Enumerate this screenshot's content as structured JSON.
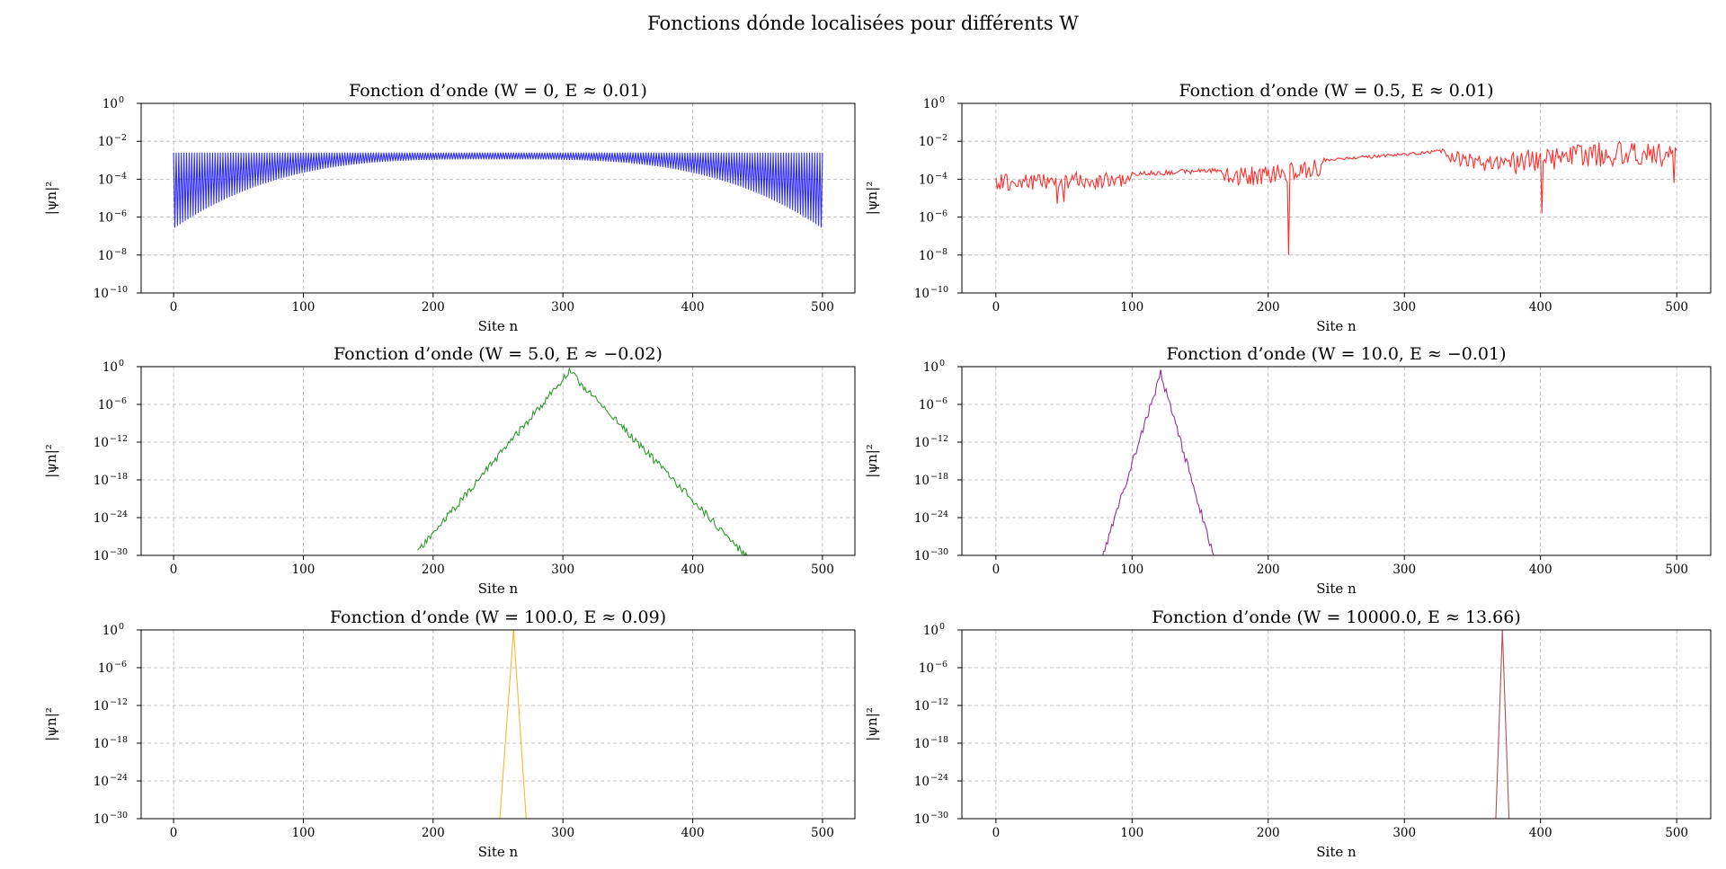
{
  "figure": {
    "suptitle": "Fonctions dónde localisées pour différents W"
  },
  "chart_data": [
    {
      "type": "line",
      "title": "Fonction d’onde (W = 0, E ≈ 0.01)",
      "xlabel": "Site n",
      "ylabel": "|ψn|²",
      "color": "#0000ff",
      "yscale": "log",
      "xlim": [
        -25,
        525
      ],
      "ylim_exp": [
        -10,
        0
      ],
      "xticks": [
        0,
        100,
        200,
        300,
        400,
        500
      ],
      "yticks_exp": [
        0,
        -2,
        -4,
        -6,
        -8,
        -10
      ],
      "grid": true,
      "pattern": "alternating",
      "n_sites": 501,
      "upper_log10": -2.6,
      "lower_log10_edge": -6.6,
      "lower_log10_center": -2.95,
      "center_site": 250
    },
    {
      "type": "line",
      "title": "Fonction d’onde (W = 0.5, E ≈ 0.01)",
      "xlabel": "Site n",
      "ylabel": "|ψn|²",
      "color": "#ff0000",
      "yscale": "log",
      "xlim": [
        -25,
        525
      ],
      "ylim_exp": [
        -10,
        0
      ],
      "xticks": [
        0,
        100,
        200,
        300,
        400,
        500
      ],
      "yticks_exp": [
        0,
        -2,
        -4,
        -6,
        -8,
        -10
      ],
      "grid": true,
      "pattern": "noisy",
      "n_sites": 501,
      "seed": 7,
      "envelope": [
        [
          0,
          -3.7
        ],
        [
          100,
          -3.6
        ],
        [
          150,
          -3.45
        ],
        [
          200,
          -3.3
        ],
        [
          240,
          -2.9
        ],
        [
          300,
          -2.6
        ],
        [
          330,
          -2.4
        ],
        [
          360,
          -2.8
        ],
        [
          400,
          -2.3
        ],
        [
          450,
          -2.0
        ],
        [
          470,
          -1.95
        ],
        [
          500,
          -2.1
        ]
      ],
      "dips": [
        [
          45,
          -5.3
        ],
        [
          50,
          -5.2
        ],
        [
          215,
          -8.0
        ],
        [
          401,
          -5.8
        ],
        [
          498,
          -4.2
        ]
      ]
    },
    {
      "type": "line",
      "title": "Fonction d’onde (W = 5.0, E ≈ −0.02)",
      "xlabel": "Site n",
      "ylabel": "|ψn|²",
      "color": "#008000",
      "yscale": "log",
      "xlim": [
        -25,
        525
      ],
      "ylim_exp": [
        -30,
        0
      ],
      "xticks": [
        0,
        100,
        200,
        300,
        400,
        500
      ],
      "yticks_exp": [
        0,
        -6,
        -12,
        -18,
        -24,
        -30
      ],
      "grid": true,
      "pattern": "peak",
      "seed": 11,
      "x_range": [
        188,
        442
      ],
      "peak_x": 305,
      "peak_log10": -0.2,
      "slope_left": 0.245,
      "slope_right": 0.215,
      "noise": 1.2
    },
    {
      "type": "line",
      "title": "Fonction d’onde (W = 10.0, E ≈ −0.01)",
      "xlabel": "Site n",
      "ylabel": "|ψn|²",
      "color": "#800080",
      "yscale": "log",
      "xlim": [
        -25,
        525
      ],
      "ylim_exp": [
        -30,
        0
      ],
      "xticks": [
        0,
        100,
        200,
        300,
        400,
        500
      ],
      "yticks_exp": [
        0,
        -6,
        -12,
        -18,
        -24,
        -30
      ],
      "grid": true,
      "pattern": "peak",
      "seed": 23,
      "x_range": [
        73,
        160
      ],
      "peak_x": 121,
      "peak_log10": -0.5,
      "slope_left": 0.68,
      "slope_right": 0.74,
      "noise": 1.3
    },
    {
      "type": "line",
      "title": "Fonction d’onde (W = 100.0, E ≈ 0.09)",
      "xlabel": "Site n",
      "ylabel": "|ψn|²",
      "color": "#ffa500",
      "yscale": "log",
      "xlim": [
        -25,
        525
      ],
      "ylim_exp": [
        -30,
        0
      ],
      "xticks": [
        0,
        100,
        200,
        300,
        400,
        500
      ],
      "yticks_exp": [
        0,
        -6,
        -12,
        -18,
        -24,
        -30
      ],
      "grid": true,
      "pattern": "spike",
      "points": [
        [
          251,
          -31
        ],
        [
          262,
          0
        ],
        [
          272,
          -31
        ]
      ]
    },
    {
      "type": "line",
      "title": "Fonction d’onde (W = 10000.0, E ≈ 13.66)",
      "xlabel": "Site n",
      "ylabel": "|ψn|²",
      "color": "#a52a2a",
      "yscale": "log",
      "xlim": [
        -25,
        525
      ],
      "ylim_exp": [
        -30,
        0
      ],
      "xticks": [
        0,
        100,
        200,
        300,
        400,
        500
      ],
      "yticks_exp": [
        0,
        -6,
        -12,
        -18,
        -24,
        -30
      ],
      "grid": true,
      "pattern": "spike",
      "points": [
        [
          367,
          -31
        ],
        [
          372,
          0
        ],
        [
          377,
          -31
        ]
      ]
    }
  ]
}
